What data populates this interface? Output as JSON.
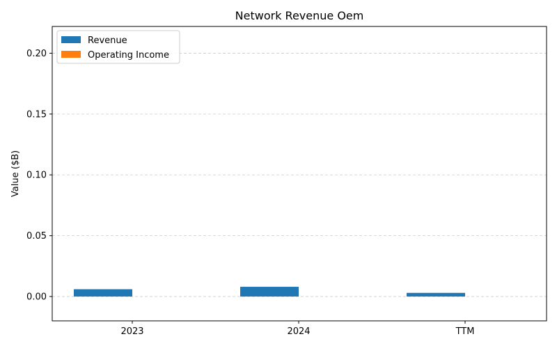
{
  "chart_data": {
    "type": "bar",
    "title": "Network Revenue Oem",
    "xlabel": "",
    "ylabel": "Value ($B)",
    "categories": [
      "2023",
      "2024",
      "TTM"
    ],
    "series": [
      {
        "name": "Revenue",
        "color": "#1f77b4",
        "values": [
          0.006,
          0.008,
          0.003
        ]
      },
      {
        "name": "Operating Income",
        "color": "#ff7f0e",
        "values": [
          0,
          0,
          0
        ]
      }
    ],
    "ylim": [
      -0.02,
      0.222
    ],
    "yticks": [
      0.0,
      0.05,
      0.1,
      0.15,
      0.2
    ],
    "ytick_labels": [
      "0.00",
      "0.05",
      "0.10",
      "0.15",
      "0.20"
    ],
    "grid": {
      "y": true,
      "x": false,
      "style": "dashed"
    },
    "legend_position": "top-left"
  }
}
